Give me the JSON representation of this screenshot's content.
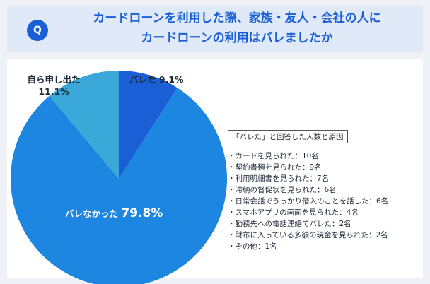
{
  "question": {
    "badge": "Q",
    "line1": "カードローンを利用した際、家族・友人・会社の人に",
    "line2": "カードローンの利用はバレましたか"
  },
  "chart_data": {
    "type": "pie",
    "slices": [
      {
        "label": "バレた",
        "value": 9.1,
        "display": "9.1%",
        "color": "#1a5fd6"
      },
      {
        "label": "バレなかった",
        "value": 79.8,
        "display": "79.8%",
        "color": "#1c86e0"
      },
      {
        "label": "自ら申し出た",
        "value": 11.1,
        "display": "11.1%",
        "color": "#3aa8d8"
      }
    ]
  },
  "reasons": {
    "title": "「バレた」と回答した人数と原因",
    "items": [
      "・カードを見られた：10名",
      "・契約書類を見られた：9名",
      "・利用明細書を見られた：7名",
      "・滞納の督促状を見られた：6名",
      "・日常会話でうっかり借入のことを話した：6名",
      "・スマホアプリの画面を見られた：4名",
      "・勤務先への電話連絡でバレた：2名",
      "・財布に入っている多額の現金を見られた：2名",
      "・その他：1名"
    ]
  }
}
